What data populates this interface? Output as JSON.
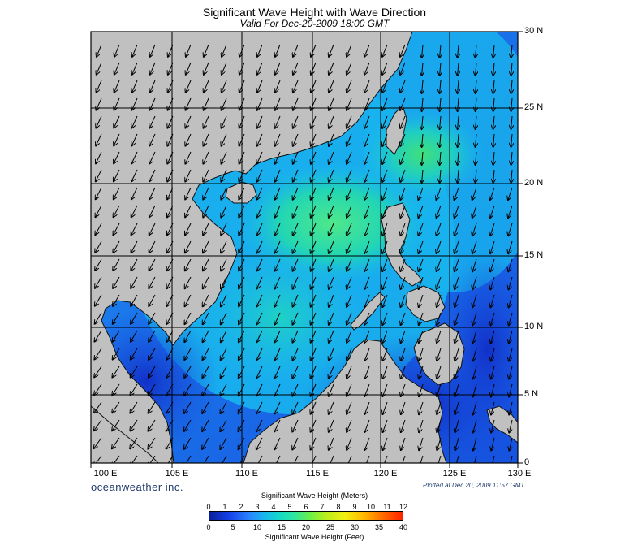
{
  "title": "Significant Wave Height with Wave Direction",
  "subtitle": "Valid For Dec-20-2009 18:00 GMT",
  "lat_labels": [
    "30 N",
    "25 N",
    "20 N",
    "15 N",
    "10 N",
    "5 N",
    "0"
  ],
  "lon_labels": [
    "100 E",
    "105 E",
    "110 E",
    "115 E",
    "120 E",
    "125 E",
    "130 E"
  ],
  "brand": "oceanweather inc.",
  "plotted": "Plotted at Dec 20, 2009 11:57 GMT",
  "colorbar": {
    "title_meters": "Significant Wave Height (Meters)",
    "title_feet": "Significant Wave Height (Feet)",
    "meters_ticks": [
      "0",
      "1",
      "2",
      "3",
      "4",
      "5",
      "6",
      "7",
      "8",
      "9",
      "10",
      "11",
      "12"
    ],
    "feet_ticks": [
      "0",
      "5",
      "10",
      "15",
      "20",
      "25",
      "30",
      "35",
      "40"
    ]
  },
  "colors": {
    "land": "#c0c0c0",
    "low": "#1a3bd8",
    "mid": "#19c6e6",
    "high": "#3ee86a"
  },
  "map_extent": {
    "lon": [
      99,
      130
    ],
    "lat": [
      0,
      30
    ]
  },
  "direction": "arrows point southwest (NE monsoon)"
}
